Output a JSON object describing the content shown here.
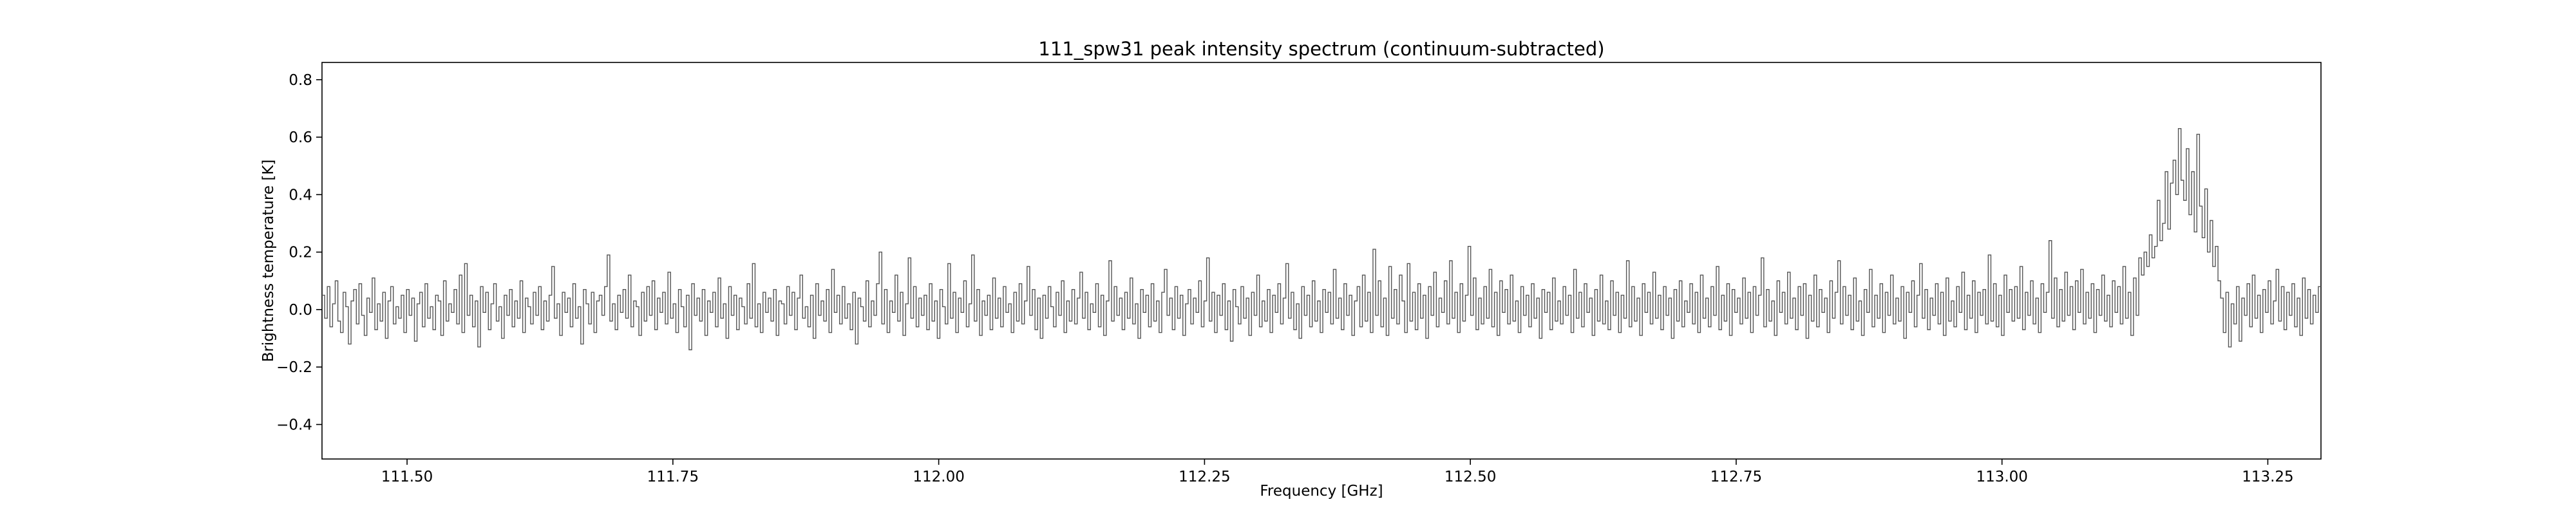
{
  "chart_data": {
    "type": "line",
    "title": "111_spw31 peak intensity spectrum (continuum-subtracted)",
    "xlabel": "Frequency [GHz]",
    "ylabel": "Brightness temperature [K]",
    "xlim": [
      111.42,
      113.3
    ],
    "ylim": [
      -0.52,
      0.86
    ],
    "xticks": [
      111.5,
      111.75,
      112.0,
      112.25,
      112.5,
      112.75,
      113.0,
      113.25
    ],
    "xtick_labels": [
      "111.50",
      "111.75",
      "112.00",
      "112.25",
      "112.50",
      "112.75",
      "113.00",
      "113.25"
    ],
    "yticks": [
      0.8,
      0.6,
      0.4,
      0.2,
      0.0,
      -0.2,
      -0.4
    ],
    "ytick_labels": [
      "0.8",
      "0.6",
      "0.4",
      "0.2",
      "0.0",
      "−0.2",
      "−0.4"
    ],
    "grid": false,
    "line_color": "#555555",
    "series": [
      {
        "x_start": 111.42,
        "x_end": 113.3,
        "values": [
          0.05,
          -0.03,
          0.08,
          -0.06,
          0.02,
          0.1,
          -0.04,
          -0.08,
          0.06,
          0.01,
          -0.12,
          0.03,
          0.07,
          -0.05,
          0.09,
          -0.02,
          -0.09,
          0.04,
          -0.01,
          0.11,
          -0.07,
          0.02,
          -0.04,
          0.06,
          -0.1,
          0.03,
          0.08,
          -0.05,
          0.01,
          -0.03,
          0.05,
          -0.08,
          0.07,
          -0.02,
          0.04,
          -0.11,
          0.02,
          0.06,
          -0.06,
          0.09,
          -0.03,
          0.01,
          -0.07,
          0.05,
          0.03,
          -0.09,
          0.1,
          -0.04,
          0.02,
          -0.01,
          0.07,
          -0.05,
          0.12,
          -0.08,
          0.16,
          -0.02,
          0.05,
          -0.06,
          0.03,
          -0.13,
          0.08,
          -0.01,
          0.06,
          -0.07,
          0.02,
          0.09,
          -0.04,
          0.01,
          -0.1,
          0.05,
          -0.02,
          0.07,
          -0.06,
          0.03,
          -0.03,
          0.1,
          -0.08,
          0.04,
          0.01,
          -0.05,
          0.06,
          -0.02,
          0.08,
          -0.07,
          0.03,
          -0.04,
          0.05,
          0.15,
          -0.03,
          0.02,
          -0.09,
          0.06,
          -0.01,
          0.04,
          -0.06,
          0.09,
          -0.03,
          0.01,
          -0.12,
          0.07,
          0.02,
          -0.05,
          0.06,
          -0.08,
          0.03,
          0.05,
          -0.02,
          0.08,
          0.19,
          -0.04,
          0.02,
          -0.07,
          0.05,
          -0.01,
          0.07,
          -0.03,
          0.12,
          -0.06,
          0.03,
          0.01,
          -0.09,
          0.06,
          -0.04,
          0.08,
          -0.02,
          0.1,
          -0.07,
          0.04,
          -0.01,
          0.06,
          -0.05,
          0.13,
          -0.03,
          0.02,
          -0.08,
          0.07,
          0.01,
          -0.06,
          0.05,
          -0.14,
          0.09,
          -0.02,
          0.04,
          -0.04,
          0.07,
          -0.09,
          0.03,
          -0.01,
          0.06,
          -0.06,
          0.11,
          -0.03,
          0.02,
          -0.1,
          0.08,
          -0.02,
          0.05,
          -0.07,
          0.04,
          0.01,
          -0.05,
          0.09,
          -0.03,
          0.16,
          -0.06,
          0.02,
          -0.08,
          0.06,
          -0.01,
          0.04,
          -0.04,
          0.07,
          -0.09,
          0.03,
          0.02,
          -0.05,
          0.08,
          -0.02,
          0.06,
          -0.07,
          0.04,
          0.12,
          -0.03,
          0.01,
          -0.06,
          0.05,
          -0.1,
          0.09,
          -0.02,
          0.03,
          -0.04,
          0.07,
          -0.08,
          0.14,
          -0.01,
          0.05,
          -0.05,
          0.08,
          -0.03,
          0.02,
          -0.07,
          0.06,
          -0.12,
          0.04,
          0.01,
          -0.04,
          0.1,
          -0.06,
          0.03,
          -0.02,
          0.09,
          0.2,
          -0.05,
          0.07,
          -0.08,
          0.03,
          -0.01,
          0.12,
          -0.04,
          0.06,
          -0.09,
          0.02,
          0.18,
          -0.03,
          0.08,
          -0.06,
          0.04,
          -0.02,
          0.05,
          -0.07,
          0.09,
          -0.04,
          0.03,
          -0.1,
          0.07,
          0.01,
          -0.05,
          0.16,
          -0.03,
          0.06,
          -0.08,
          0.04,
          -0.01,
          0.1,
          -0.06,
          0.02,
          0.19,
          -0.04,
          0.07,
          -0.09,
          0.03,
          -0.02,
          0.05,
          -0.07,
          0.11,
          -0.03,
          0.04,
          -0.06,
          0.08,
          -0.01,
          0.02,
          -0.08,
          0.06,
          -0.04,
          0.09,
          -0.05,
          0.03,
          0.15,
          -0.02,
          0.07,
          -0.07,
          0.04,
          -0.1,
          0.05,
          -0.03,
          0.08,
          0.01,
          -0.06,
          0.06,
          -0.02,
          0.1,
          -0.08,
          0.03,
          -0.04,
          0.07,
          -0.05,
          0.04,
          0.13,
          -0.03,
          0.06,
          -0.07,
          0.02,
          -0.01,
          0.09,
          -0.06,
          0.05,
          -0.09,
          0.03,
          0.17,
          -0.04,
          0.08,
          -0.02,
          0.04,
          -0.07,
          0.06,
          -0.03,
          0.11,
          -0.05,
          0.02,
          -0.1,
          0.07,
          -0.01,
          0.05,
          -0.06,
          0.09,
          -0.04,
          0.03,
          -0.08,
          0.06,
          0.14,
          -0.02,
          0.04,
          -0.07,
          0.08,
          -0.03,
          0.05,
          -0.09,
          0.02,
          0.07,
          -0.05,
          0.04,
          -0.01,
          0.1,
          -0.06,
          0.03,
          0.18,
          -0.04,
          0.06,
          -0.08,
          0.05,
          -0.02,
          0.09,
          -0.07,
          0.03,
          -0.11,
          0.07,
          0.01,
          -0.05,
          0.08,
          -0.03,
          0.04,
          -0.09,
          0.06,
          -0.02,
          0.12,
          -0.06,
          0.03,
          -0.04,
          0.07,
          -0.08,
          0.05,
          -0.01,
          0.09,
          -0.05,
          0.04,
          0.16,
          -0.03,
          0.06,
          -0.07,
          0.02,
          -0.1,
          0.08,
          -0.02,
          0.05,
          -0.06,
          0.1,
          -0.04,
          0.03,
          -0.08,
          0.07,
          -0.01,
          0.06,
          -0.05,
          0.14,
          -0.03,
          0.04,
          -0.07,
          0.09,
          -0.02,
          0.05,
          -0.09,
          0.03,
          0.08,
          -0.06,
          0.12,
          -0.04,
          0.06,
          -0.08,
          0.21,
          -0.02,
          0.1,
          -0.06,
          0.04,
          -0.09,
          0.15,
          -0.03,
          0.07,
          -0.05,
          0.12,
          0.03,
          -0.08,
          0.16,
          -0.04,
          0.06,
          -0.07,
          0.09,
          -0.03,
          0.05,
          -0.1,
          0.08,
          -0.02,
          0.13,
          -0.06,
          0.04,
          -0.01,
          0.1,
          -0.05,
          0.17,
          -0.03,
          0.06,
          -0.08,
          0.09,
          -0.04,
          0.05,
          0.22,
          -0.02,
          0.11,
          -0.07,
          0.04,
          -0.05,
          0.08,
          -0.03,
          0.14,
          -0.06,
          0.06,
          -0.09,
          0.1,
          -0.01,
          0.07,
          -0.05,
          0.12,
          -0.04,
          0.03,
          -0.08,
          0.08,
          -0.02,
          0.05,
          -0.06,
          0.09,
          -0.03,
          0.04,
          -0.1,
          0.07,
          -0.01,
          0.06,
          -0.07,
          0.11,
          -0.04,
          0.03,
          -0.05,
          0.08,
          -0.02,
          0.05,
          -0.08,
          0.14,
          -0.03,
          0.06,
          -0.06,
          0.09,
          -0.01,
          0.04,
          -0.09,
          0.07,
          -0.04,
          0.12,
          -0.05,
          0.03,
          -0.07,
          0.1,
          -0.02,
          0.06,
          -0.08,
          0.05,
          -0.03,
          0.17,
          -0.06,
          0.08,
          -0.04,
          0.04,
          -0.09,
          0.09,
          -0.01,
          0.06,
          -0.05,
          0.13,
          -0.03,
          0.05,
          -0.07,
          0.08,
          -0.02,
          0.04,
          -0.1,
          0.07,
          -0.04,
          0.1,
          -0.06,
          0.03,
          -0.01,
          0.09,
          -0.05,
          0.06,
          -0.08,
          0.12,
          -0.03,
          0.04,
          -0.06,
          0.08,
          -0.02,
          0.15,
          -0.07,
          0.05,
          -0.04,
          0.09,
          -0.09,
          0.07,
          -0.01,
          0.04,
          -0.05,
          0.11,
          -0.03,
          0.06,
          -0.08,
          0.08,
          -0.02,
          0.05,
          0.18,
          -0.06,
          0.07,
          -0.04,
          0.03,
          -0.09,
          0.1,
          -0.01,
          0.06,
          -0.05,
          0.13,
          -0.03,
          0.04,
          -0.07,
          0.08,
          -0.02,
          0.09,
          -0.1,
          0.05,
          -0.04,
          0.12,
          -0.06,
          0.07,
          -0.01,
          0.04,
          -0.08,
          0.1,
          -0.03,
          0.06,
          0.17,
          -0.05,
          0.08,
          -0.02,
          0.05,
          -0.07,
          0.11,
          -0.04,
          0.03,
          -0.09,
          0.07,
          -0.01,
          0.14,
          -0.06,
          0.05,
          -0.03,
          0.09,
          -0.08,
          0.06,
          -0.02,
          0.12,
          -0.05,
          0.04,
          -0.04,
          0.08,
          -0.1,
          0.06,
          -0.01,
          0.1,
          -0.06,
          0.05,
          0.16,
          -0.03,
          0.07,
          -0.07,
          0.04,
          -0.02,
          0.09,
          -0.05,
          0.06,
          -0.09,
          0.11,
          -0.04,
          0.03,
          -0.06,
          0.08,
          -0.01,
          0.13,
          -0.07,
          0.05,
          -0.03,
          0.1,
          -0.08,
          0.06,
          -0.02,
          0.07,
          -0.05,
          0.19,
          -0.04,
          0.09,
          -0.06,
          0.05,
          -0.09,
          0.12,
          -0.01,
          0.07,
          -0.04,
          0.08,
          -0.03,
          0.15,
          -0.07,
          0.06,
          -0.02,
          0.1,
          -0.05,
          0.04,
          -0.08,
          0.09,
          -0.01,
          0.06,
          0.24,
          -0.03,
          0.11,
          -0.06,
          0.07,
          -0.04,
          0.13,
          -0.02,
          0.08,
          -0.07,
          0.1,
          -0.01,
          0.14,
          -0.05,
          0.06,
          -0.03,
          0.09,
          -0.08,
          0.07,
          -0.02,
          0.12,
          -0.04,
          0.05,
          -0.06,
          0.1,
          -0.01,
          0.08,
          -0.05,
          0.15,
          -0.03,
          0.06,
          -0.09,
          0.11,
          -0.02,
          0.18,
          0.12,
          0.2,
          0.15,
          0.26,
          0.18,
          0.22,
          0.38,
          0.24,
          0.3,
          0.48,
          0.28,
          0.44,
          0.52,
          0.4,
          0.63,
          0.45,
          0.38,
          0.56,
          0.33,
          0.48,
          0.27,
          0.61,
          0.36,
          0.25,
          0.42,
          0.2,
          0.31,
          0.15,
          0.22,
          0.1,
          0.04,
          -0.08,
          0.06,
          -0.13,
          0.02,
          -0.05,
          0.08,
          -0.11,
          0.04,
          -0.02,
          0.09,
          -0.06,
          0.12,
          -0.03,
          0.05,
          -0.08,
          0.07,
          -0.01,
          0.1,
          -0.05,
          0.03,
          0.14,
          -0.04,
          0.08,
          -0.07,
          0.06,
          -0.02,
          0.09,
          -0.06,
          0.04,
          -0.09,
          0.11,
          -0.03,
          0.07,
          -0.05,
          0.05,
          -0.01,
          0.08
        ]
      }
    ]
  }
}
